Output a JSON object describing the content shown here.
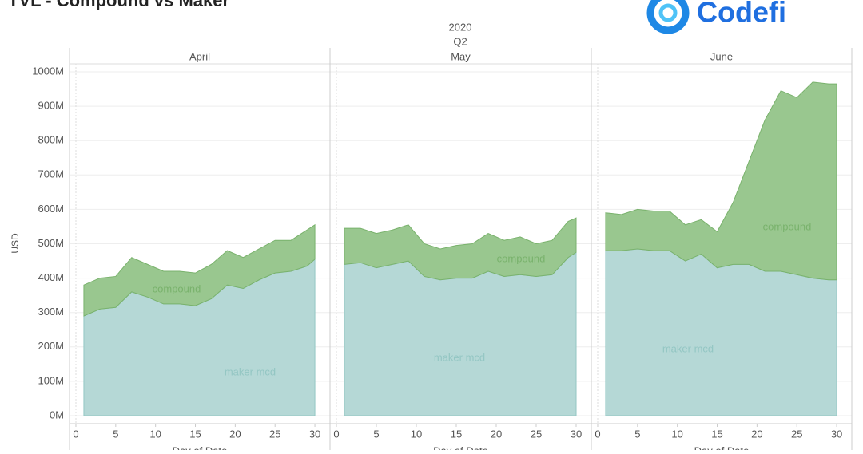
{
  "title": "TVL - Compound vs Maker",
  "logo": "Codefi",
  "column_header": [
    "2020",
    "Q2"
  ],
  "x_label": "Day of Date",
  "y_axis": {
    "label": "USD",
    "ylim": [
      0,
      1000000000
    ],
    "yticks": [
      {
        "value": 0,
        "label": "0M"
      },
      {
        "value": 100000000,
        "label": "100M"
      },
      {
        "value": 200000000,
        "label": "200M"
      },
      {
        "value": 300000000,
        "label": "300M"
      },
      {
        "value": 400000000,
        "label": "400M"
      },
      {
        "value": 500000000,
        "label": "500M"
      },
      {
        "value": 600000000,
        "label": "600M"
      },
      {
        "value": 700000000,
        "label": "700M"
      },
      {
        "value": 800000000,
        "label": "800M"
      },
      {
        "value": 900000000,
        "label": "900M"
      },
      {
        "value": 1000000000,
        "label": "1000M"
      }
    ]
  },
  "chart_data": [
    {
      "type": "stacked_area",
      "title": "April",
      "xlim": [
        -0.8,
        31.9
      ],
      "xticks": [
        0,
        5,
        10,
        15,
        20,
        25,
        30
      ],
      "x": [
        1,
        3,
        5,
        7,
        9,
        11,
        13,
        15,
        17,
        19,
        21,
        23,
        25,
        27,
        29,
        30
      ],
      "series": [
        {
          "name": "maker mcd",
          "color": "#b5d8d6",
          "line_color": "#93c6c3",
          "values": [
            290000000,
            310000000,
            315000000,
            360000000,
            345000000,
            325000000,
            325000000,
            320000000,
            340000000,
            380000000,
            370000000,
            395000000,
            415000000,
            420000000,
            435000000,
            455000000
          ]
        },
        {
          "name": "compound",
          "color": "#99c78f",
          "line_color": "#79b26c",
          "values": [
            90000000,
            90000000,
            90000000,
            100000000,
            95000000,
            95000000,
            95000000,
            95000000,
            100000000,
            100000000,
            90000000,
            90000000,
            95000000,
            90000000,
            105000000,
            100000000
          ]
        }
      ]
    },
    {
      "type": "stacked_area",
      "title": "May",
      "xlim": [
        -0.8,
        31.9
      ],
      "xticks": [
        0,
        5,
        10,
        15,
        20,
        25,
        30
      ],
      "x": [
        1,
        3,
        5,
        7,
        9,
        11,
        13,
        15,
        17,
        19,
        21,
        23,
        25,
        27,
        29,
        30
      ],
      "series": [
        {
          "name": "maker mcd",
          "color": "#b5d8d6",
          "line_color": "#93c6c3",
          "values": [
            440000000,
            445000000,
            430000000,
            440000000,
            450000000,
            405000000,
            395000000,
            400000000,
            400000000,
            420000000,
            405000000,
            410000000,
            405000000,
            410000000,
            460000000,
            475000000
          ]
        },
        {
          "name": "compound",
          "color": "#99c78f",
          "line_color": "#79b26c",
          "values": [
            105000000,
            100000000,
            100000000,
            100000000,
            105000000,
            95000000,
            90000000,
            95000000,
            100000000,
            110000000,
            105000000,
            110000000,
            95000000,
            100000000,
            105000000,
            100000000
          ]
        }
      ]
    },
    {
      "type": "stacked_area",
      "title": "June",
      "xlim": [
        -0.8,
        31.9
      ],
      "xticks": [
        0,
        5,
        10,
        15,
        20,
        25,
        30
      ],
      "x": [
        1,
        3,
        5,
        7,
        9,
        11,
        13,
        15,
        17,
        19,
        21,
        23,
        25,
        27,
        29,
        30
      ],
      "series": [
        {
          "name": "maker mcd",
          "color": "#b5d8d6",
          "line_color": "#93c6c3",
          "values": [
            480000000,
            480000000,
            485000000,
            480000000,
            480000000,
            450000000,
            470000000,
            430000000,
            440000000,
            440000000,
            420000000,
            420000000,
            410000000,
            400000000,
            395000000,
            395000000
          ]
        },
        {
          "name": "compound",
          "color": "#99c78f",
          "line_color": "#79b26c",
          "values": [
            110000000,
            105000000,
            115000000,
            115000000,
            115000000,
            105000000,
            100000000,
            105000000,
            180000000,
            300000000,
            440000000,
            525000000,
            515000000,
            570000000,
            570000000,
            570000000
          ]
        }
      ]
    }
  ]
}
